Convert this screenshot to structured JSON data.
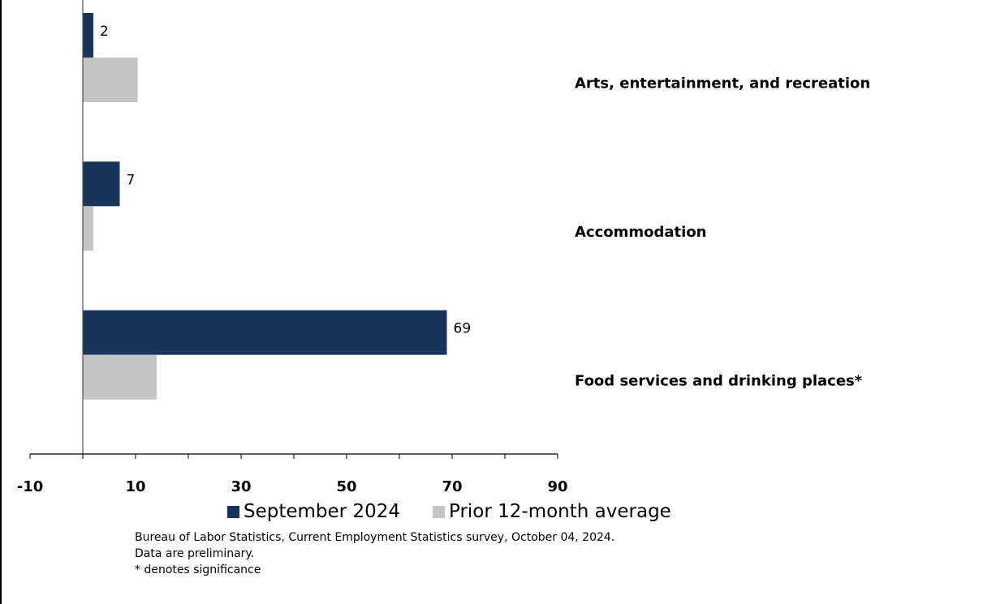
{
  "chart_data": {
    "type": "bar",
    "orientation": "horizontal",
    "categories": [
      "Arts, entertainment, and recreation",
      "Accommodation",
      "Food services and drinking places*"
    ],
    "series": [
      {
        "name": "September 2024",
        "values": [
          2,
          7,
          69
        ],
        "color": "#1a355a",
        "show_labels": true
      },
      {
        "name": "Prior 12-month average",
        "values": [
          10.4,
          2.0,
          14.0
        ],
        "color": "#c4c4c4",
        "show_labels": false
      }
    ],
    "xlim": [
      -10,
      90
    ],
    "xticks": [
      "-10",
      "10",
      "30",
      "50",
      "70",
      "90"
    ],
    "grid": false,
    "legend_position": "bottom"
  },
  "notes": [
    "Bureau of Labor Statistics, Current Employment Statistics survey, October 04, 2024.",
    "Data are preliminary.",
    "* denotes significance"
  ]
}
